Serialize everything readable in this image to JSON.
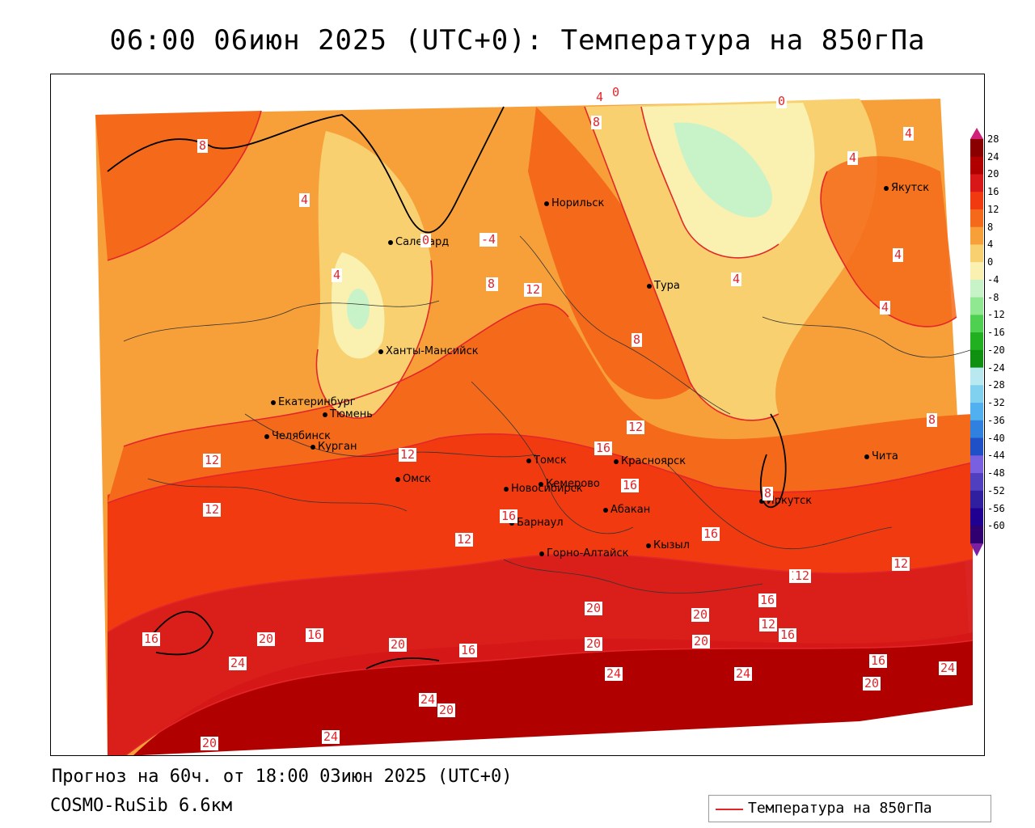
{
  "title": "06:00 06июн 2025 (UTC+0): Температура на 850гПа",
  "footer": {
    "forecast": "Прогноз на 60ч. от 18:00 03июн 2025 (UTC+0)",
    "model": "COSMO-RuSib 6.6км"
  },
  "legend": {
    "label": "Температура на 850гПа",
    "color": "#e3262a"
  },
  "colorbar": {
    "ticks": [
      "28",
      "24",
      "20",
      "16",
      "12",
      "8",
      "4",
      "0",
      "-4",
      "-8",
      "-12",
      "-16",
      "-20",
      "-24",
      "-28",
      "-32",
      "-36",
      "-40",
      "-44",
      "-48",
      "-52",
      "-56",
      "-60"
    ],
    "colors": [
      "#8a0000",
      "#b00000",
      "#d81818",
      "#f23a10",
      "#f46a1a",
      "#f7a03a",
      "#f8d070",
      "#faf0b0",
      "#c8f2c8",
      "#90e890",
      "#50d050",
      "#20b020",
      "#109010",
      "#b8e8f0",
      "#80d0f0",
      "#50b0f0",
      "#3080e0",
      "#2050c8",
      "#7860e0",
      "#5040c0",
      "#3020a0",
      "#200090",
      "#300070"
    ]
  },
  "cities": [
    {
      "name": "Норильск"
    },
    {
      "name": "Якутск"
    },
    {
      "name": "Салехард"
    },
    {
      "name": "Тура"
    },
    {
      "name": "Ханты-Мансийск"
    },
    {
      "name": "Екатеринбург"
    },
    {
      "name": "Тюмень"
    },
    {
      "name": "Челябинск"
    },
    {
      "name": "Курган"
    },
    {
      "name": "Томск"
    },
    {
      "name": "Красноярск"
    },
    {
      "name": "Омск"
    },
    {
      "name": "Новосибирск"
    },
    {
      "name": "Кемерово"
    },
    {
      "name": "Абакан"
    },
    {
      "name": "Барнаул"
    },
    {
      "name": "Горно-Алтайск"
    },
    {
      "name": "Кызыл"
    },
    {
      "name": "Иркутск"
    },
    {
      "name": "Чита"
    }
  ],
  "contour_labels": [
    "8",
    "4",
    "0",
    "-4",
    "4",
    "8",
    "0",
    "4",
    "0",
    "8",
    "12",
    "8",
    "4",
    "0",
    "4",
    "4",
    "4",
    "4",
    "8",
    "12",
    "16",
    "12",
    "16",
    "8",
    "12",
    "8",
    "12",
    "16",
    "12",
    "16",
    "12",
    "12",
    "16",
    "20",
    "20",
    "16",
    "16",
    "20",
    "16",
    "20",
    "24",
    "24",
    "20",
    "24",
    "20",
    "24",
    "16",
    "24",
    "20",
    "20",
    "24",
    "20",
    "16",
    "12",
    "12"
  ]
}
